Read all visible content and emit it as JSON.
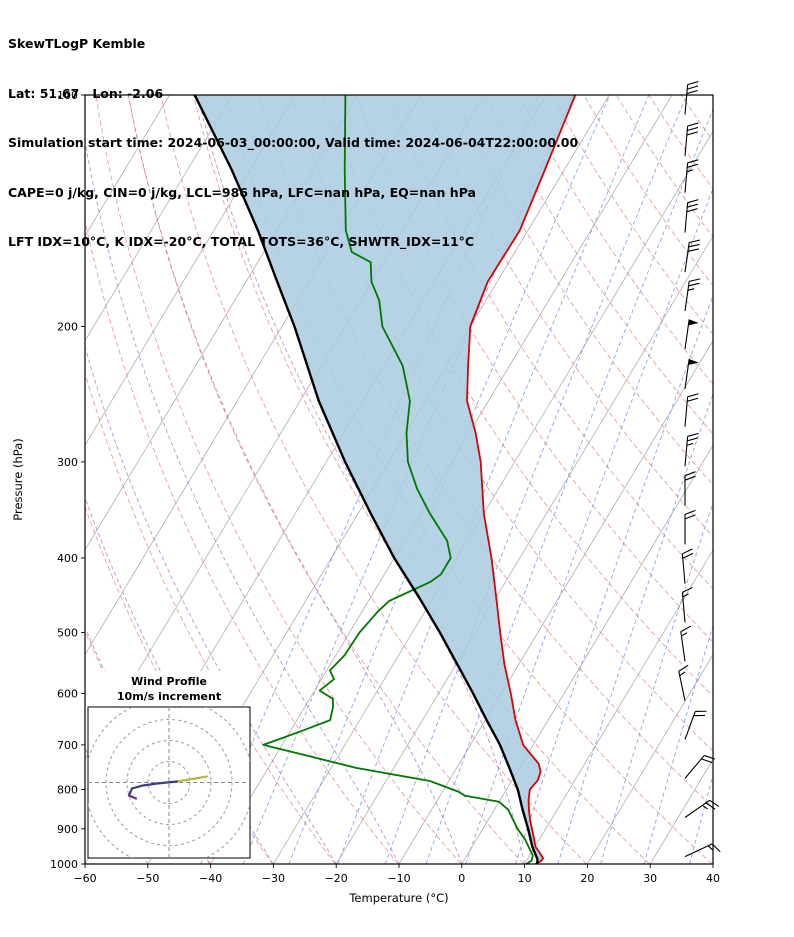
{
  "header": {
    "title": "SkewTLogP Kemble",
    "location": "Lat: 51.67   Lon: -2.06",
    "times": "Simulation start time: 2024-06-03_00:00:00, Valid time: 2024-06-04T22:00:00.00",
    "indices1": "CAPE=0 j/kg, CIN=0 j/kg, LCL=986 hPa, LFC=nan hPa, EQ=nan hPa",
    "indices2": "LFT IDX=10°C, K IDX=-20°C, TOTAL TOTS=36°C, SHWTR_IDX=11°C"
  },
  "chart_data": {
    "type": "line",
    "subtype": "skewT-logP",
    "title": "SkewTLogP Kemble",
    "xlabel": "Temperature (°C)",
    "ylabel": "Pressure (hPa)",
    "xlim": [
      -60,
      40
    ],
    "ylim": [
      1000,
      100
    ],
    "x_ticks": [
      -60,
      -50,
      -40,
      -30,
      -20,
      -10,
      0,
      10,
      20,
      30,
      40
    ],
    "y_ticks": [
      100,
      200,
      300,
      400,
      500,
      600,
      700,
      800,
      900,
      1000
    ],
    "y_scale": "log",
    "series": [
      {
        "name": "temperature",
        "color": "#dd0000",
        "points": [
          [
            1000,
            11.7
          ],
          [
            992,
            12.3
          ],
          [
            983,
            12.4
          ],
          [
            965,
            11.2
          ],
          [
            950,
            10.1
          ],
          [
            925,
            9
          ],
          [
            900,
            7.8
          ],
          [
            875,
            6.6
          ],
          [
            850,
            5.5
          ],
          [
            825,
            4.5
          ],
          [
            800,
            3.7
          ],
          [
            778,
            4.1
          ],
          [
            758,
            3.7
          ],
          [
            740,
            2.6
          ],
          [
            720,
            0.5
          ],
          [
            700,
            -1.6
          ],
          [
            650,
            -5.2
          ],
          [
            600,
            -8.5
          ],
          [
            550,
            -12.3
          ],
          [
            500,
            -16
          ],
          [
            450,
            -20
          ],
          [
            400,
            -24.5
          ],
          [
            350,
            -30
          ],
          [
            300,
            -35.4
          ],
          [
            275,
            -39
          ],
          [
            250,
            -43.4
          ],
          [
            225,
            -46.6
          ],
          [
            200,
            -50
          ],
          [
            175,
            -51.5
          ],
          [
            150,
            -51.3
          ],
          [
            125,
            -53.1
          ],
          [
            100,
            -55.4
          ]
        ]
      },
      {
        "name": "dewpoint",
        "color": "#007700",
        "points": [
          [
            1000,
            10.3
          ],
          [
            990,
            10.8
          ],
          [
            975,
            10.5
          ],
          [
            950,
            9
          ],
          [
            930,
            7.8
          ],
          [
            900,
            5.5
          ],
          [
            850,
            2.2
          ],
          [
            830,
            0
          ],
          [
            815,
            -6
          ],
          [
            805,
            -7.5
          ],
          [
            780,
            -13
          ],
          [
            750,
            -26
          ],
          [
            720,
            -36
          ],
          [
            700,
            -43
          ],
          [
            688,
            -41
          ],
          [
            670,
            -38
          ],
          [
            650,
            -34.7
          ],
          [
            625,
            -35.5
          ],
          [
            610,
            -36.3
          ],
          [
            595,
            -39.2
          ],
          [
            575,
            -38
          ],
          [
            560,
            -39.5
          ],
          [
            535,
            -38.6
          ],
          [
            500,
            -38.4
          ],
          [
            470,
            -37.5
          ],
          [
            455,
            -36.7
          ],
          [
            430,
            -32
          ],
          [
            420,
            -31
          ],
          [
            400,
            -31
          ],
          [
            380,
            -33.2
          ],
          [
            350,
            -38.6
          ],
          [
            325,
            -43
          ],
          [
            300,
            -47
          ],
          [
            275,
            -50
          ],
          [
            250,
            -52.5
          ],
          [
            225,
            -57
          ],
          [
            200,
            -64
          ],
          [
            185,
            -67
          ],
          [
            175,
            -70
          ],
          [
            165,
            -72
          ],
          [
            160,
            -76
          ],
          [
            150,
            -79
          ],
          [
            125,
            -85
          ],
          [
            100,
            -92
          ]
        ]
      },
      {
        "name": "parcel",
        "color": "#000000",
        "points": [
          [
            1000,
            12
          ],
          [
            986,
            11.6
          ],
          [
            950,
            9.6
          ],
          [
            900,
            7.2
          ],
          [
            850,
            4.5
          ],
          [
            800,
            1.8
          ],
          [
            750,
            -1.6
          ],
          [
            700,
            -5.3
          ],
          [
            650,
            -9.8
          ],
          [
            600,
            -14.5
          ],
          [
            550,
            -19.8
          ],
          [
            500,
            -25.6
          ],
          [
            450,
            -32.3
          ],
          [
            400,
            -40
          ],
          [
            350,
            -48
          ],
          [
            300,
            -57
          ],
          [
            250,
            -67
          ],
          [
            200,
            -78
          ],
          [
            175,
            -85
          ],
          [
            150,
            -93
          ],
          [
            125,
            -103
          ],
          [
            100,
            -116
          ]
        ]
      }
    ],
    "fill_between": {
      "from": "parcel",
      "to": "temperature",
      "color": "#a9cbe0"
    },
    "reference_lines": {
      "isotherms_c": {
        "color": "#b0b0b0",
        "values": [
          -120,
          -110,
          -100,
          -90,
          -80,
          -70,
          -60,
          -50,
          -40,
          -30,
          -20,
          -10,
          0,
          10,
          20,
          30,
          40
        ]
      },
      "dry_adiabats_K": {
        "color": "#dd8888",
        "values": [
          233,
          243,
          253,
          263,
          273,
          283,
          293,
          303,
          313,
          323,
          333,
          343,
          353,
          363,
          373,
          383,
          393,
          403,
          413,
          423,
          433,
          443,
          453,
          463
        ]
      },
      "moist_adiabats_c": {
        "color": "#a86bc0",
        "values": [
          -60,
          -50,
          -40,
          -30,
          -20,
          -10,
          0,
          10
        ]
      },
      "mixing_ratio_gkg": {
        "color": "#7788dd",
        "values": [
          0.1,
          0.2,
          0.4,
          0.8,
          1.5,
          2.5,
          4,
          7,
          11,
          17,
          26,
          40
        ]
      }
    },
    "wind_barbs": [
      {
        "p": 106,
        "speed_kt": 30,
        "dir_deg": 5
      },
      {
        "p": 120,
        "speed_kt": 30,
        "dir_deg": 5
      },
      {
        "p": 134,
        "speed_kt": 25,
        "dir_deg": 5
      },
      {
        "p": 151,
        "speed_kt": 30,
        "dir_deg": 5
      },
      {
        "p": 170,
        "speed_kt": 30,
        "dir_deg": 8
      },
      {
        "p": 191,
        "speed_kt": 25,
        "dir_deg": 8
      },
      {
        "p": 214,
        "speed_kt": 50,
        "dir_deg": 8
      },
      {
        "p": 241,
        "speed_kt": 50,
        "dir_deg": 8
      },
      {
        "p": 270,
        "speed_kt": 20,
        "dir_deg": 5
      },
      {
        "p": 304,
        "speed_kt": 25,
        "dir_deg": 5
      },
      {
        "p": 342,
        "speed_kt": 20,
        "dir_deg": 0
      },
      {
        "p": 384,
        "speed_kt": 20,
        "dir_deg": 0
      },
      {
        "p": 432,
        "speed_kt": 20,
        "dir_deg": -5
      },
      {
        "p": 485,
        "speed_kt": 15,
        "dir_deg": -5
      },
      {
        "p": 545,
        "speed_kt": 15,
        "dir_deg": -8
      },
      {
        "p": 613,
        "speed_kt": 15,
        "dir_deg": -12
      },
      {
        "p": 689,
        "speed_kt": 20,
        "dir_deg": 20
      },
      {
        "p": 774,
        "speed_kt": 20,
        "dir_deg": 40
      },
      {
        "p": 870,
        "speed_kt": 25,
        "dir_deg": 55
      },
      {
        "p": 978,
        "speed_kt": 15,
        "dir_deg": 65
      }
    ],
    "hodograph": {
      "title": "Wind Profile",
      "subtitle": "10m/s increment",
      "ring_spacing_ms": 10,
      "rings_ms": [
        10,
        20,
        30,
        40
      ],
      "trace": [
        {
          "color": "#b9b93a",
          "pts": [
            [
              38,
              -6
            ],
            [
              20,
              -3
            ],
            [
              8,
              -1
            ]
          ]
        },
        {
          "color": "#3c3c85",
          "pts": [
            [
              8,
              -1
            ],
            [
              -12,
              1
            ],
            [
              -26,
              3
            ],
            [
              -37,
              6
            ],
            [
              -40,
              13
            ]
          ]
        },
        {
          "color": "#6a2d80",
          "pts": [
            [
              -40,
              13
            ],
            [
              -33,
              16
            ]
          ]
        }
      ]
    }
  }
}
